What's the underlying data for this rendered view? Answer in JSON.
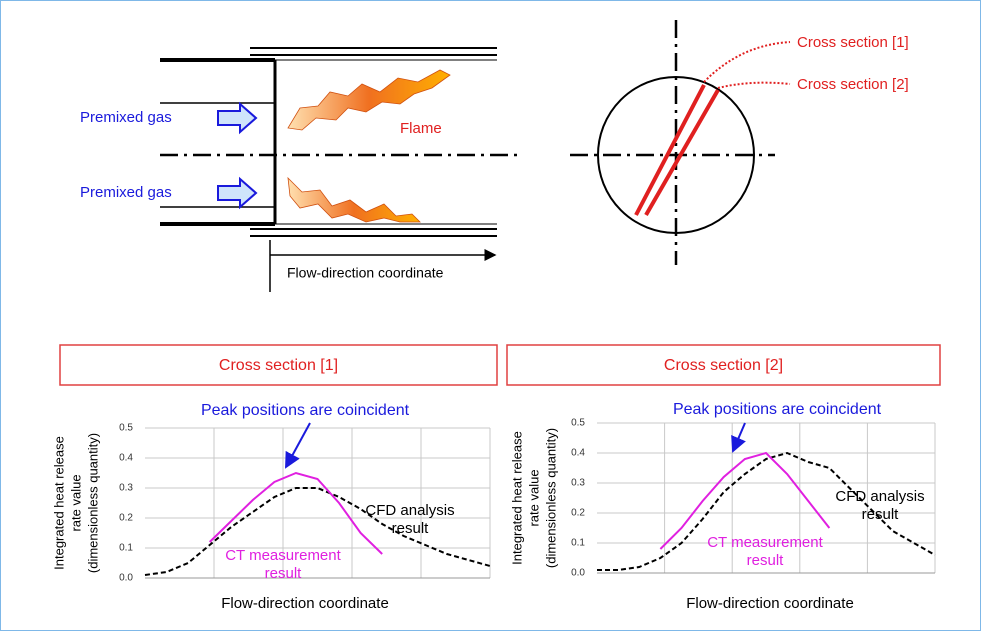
{
  "diagram": {
    "premixed_gas_top": "Premixed gas",
    "premixed_gas_bottom": "Premixed gas",
    "flame": "Flame",
    "flow_axis": "Flow-direction coordinate",
    "cross_section_1": "Cross section [1]",
    "cross_section_2": "Cross section [2]"
  },
  "chart_data": [
    {
      "type": "line",
      "title": "Cross section [1]",
      "y_label": [
        "Integrated heat release",
        "rate value",
        "(dimensionless quantity)"
      ],
      "x_label": "Flow-direction coordinate",
      "annotation": "Peak positions are coincident",
      "categories": [
        null,
        null,
        null,
        null,
        null,
        null,
        null,
        null,
        null,
        null,
        null,
        null,
        null,
        null,
        null,
        null,
        null
      ],
      "series": [
        {
          "name": [
            "CFD analysis",
            "result"
          ],
          "color": "#000000",
          "dashed": true,
          "values": [
            0.01,
            0.02,
            0.05,
            0.11,
            0.17,
            0.22,
            0.27,
            0.3,
            0.3,
            0.27,
            0.23,
            0.18,
            0.14,
            0.11,
            0.08,
            0.06,
            0.04
          ]
        },
        {
          "name": [
            "CT measurement",
            "result"
          ],
          "color": "#e020e0",
          "dashed": false,
          "values": [
            null,
            null,
            null,
            0.12,
            0.19,
            0.26,
            0.32,
            0.35,
            0.33,
            0.25,
            0.15,
            0.08,
            null,
            null,
            null,
            null,
            null
          ]
        }
      ],
      "ylim": [
        0,
        0.5
      ],
      "yticks": [
        {
          "value": 0,
          "label": "0.0"
        },
        0.1,
        0.2,
        0.3,
        0.4,
        0.5
      ],
      "grid": true
    },
    {
      "type": "line",
      "title": "Cross section [2]",
      "y_label": [
        "Integrated heat release",
        "rate value",
        "(dimensionless quantity)"
      ],
      "x_label": "Flow-direction coordinate",
      "annotation": "Peak positions are coincident",
      "categories": [
        null,
        null,
        null,
        null,
        null,
        null,
        null,
        null,
        null,
        null,
        null,
        null,
        null,
        null,
        null,
        null,
        null
      ],
      "series": [
        {
          "name": [
            "CFD analysis",
            "result"
          ],
          "color": "#000000",
          "dashed": true,
          "values": [
            0.01,
            0.01,
            0.02,
            0.05,
            0.1,
            0.18,
            0.27,
            0.33,
            0.38,
            0.4,
            0.37,
            0.35,
            0.28,
            0.21,
            0.14,
            0.1,
            0.06
          ]
        },
        {
          "name": [
            "CT measurement",
            "result"
          ],
          "color": "#e020e0",
          "dashed": false,
          "values": [
            null,
            null,
            null,
            0.08,
            0.15,
            0.24,
            0.32,
            0.38,
            0.4,
            0.33,
            0.24,
            0.15,
            null,
            null,
            null,
            null,
            null
          ]
        }
      ],
      "ylim": [
        0,
        0.5
      ],
      "yticks": [
        {
          "value": 0,
          "label": "0.0"
        },
        0.1,
        0.2,
        0.3,
        0.4,
        0.5
      ],
      "grid": true
    }
  ]
}
